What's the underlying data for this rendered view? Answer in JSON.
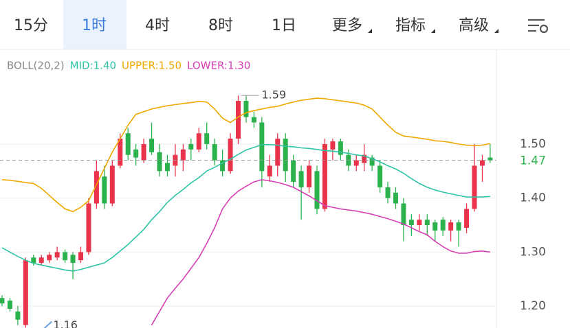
{
  "tabs": [
    "15分",
    "1时",
    "4时",
    "8时",
    "1日",
    "更多",
    "指标",
    "高级"
  ],
  "active_tab": 1,
  "chart_data": {
    "type": "candlestick",
    "indicator": "BOLL(20,2)",
    "up_color": "#e8334a",
    "down_color": "#2bb24c",
    "open": [
      1.215,
      1.21,
      1.19,
      1.165,
      1.29,
      1.28,
      1.285,
      1.29,
      1.3,
      1.295,
      1.285,
      1.3,
      1.39,
      1.44,
      1.39,
      1.46,
      1.52,
      1.49,
      1.47,
      1.51,
      1.485,
      1.465,
      1.46,
      1.47,
      1.5,
      1.49,
      1.52,
      1.5,
      1.47,
      1.45,
      1.51,
      1.58,
      1.55,
      1.54,
      1.44,
      1.46,
      1.51,
      1.47,
      1.45,
      1.42,
      1.45,
      1.38,
      1.49,
      1.505,
      1.48,
      1.46,
      1.465,
      1.475,
      1.46,
      1.42,
      1.41,
      1.39,
      1.36,
      1.35,
      1.36,
      1.355,
      1.36,
      1.34,
      1.355,
      1.345,
      1.38,
      1.46,
      1.475
    ],
    "high": [
      1.22,
      1.215,
      1.2,
      1.29,
      1.295,
      1.295,
      1.3,
      1.31,
      1.305,
      1.3,
      1.31,
      1.4,
      1.47,
      1.46,
      1.47,
      1.52,
      1.53,
      1.5,
      1.51,
      1.54,
      1.5,
      1.48,
      1.5,
      1.5,
      1.51,
      1.53,
      1.54,
      1.51,
      1.49,
      1.52,
      1.59,
      1.59,
      1.56,
      1.55,
      1.48,
      1.52,
      1.52,
      1.48,
      1.46,
      1.47,
      1.46,
      1.51,
      1.51,
      1.51,
      1.49,
      1.48,
      1.5,
      1.48,
      1.47,
      1.43,
      1.42,
      1.4,
      1.37,
      1.37,
      1.37,
      1.36,
      1.365,
      1.36,
      1.36,
      1.39,
      1.5,
      1.48,
      1.5
    ],
    "low": [
      1.2,
      1.19,
      1.165,
      1.16,
      1.275,
      1.275,
      1.28,
      1.285,
      1.28,
      1.25,
      1.28,
      1.295,
      1.38,
      1.38,
      1.385,
      1.455,
      1.47,
      1.46,
      1.465,
      1.48,
      1.44,
      1.44,
      1.44,
      1.45,
      1.47,
      1.485,
      1.49,
      1.46,
      1.44,
      1.445,
      1.5,
      1.54,
      1.53,
      1.42,
      1.43,
      1.44,
      1.43,
      1.42,
      1.36,
      1.41,
      1.37,
      1.375,
      1.47,
      1.47,
      1.45,
      1.45,
      1.45,
      1.45,
      1.41,
      1.39,
      1.38,
      1.32,
      1.33,
      1.34,
      1.33,
      1.32,
      1.33,
      1.32,
      1.31,
      1.335,
      1.375,
      1.43,
      1.465
    ],
    "close": [
      1.205,
      1.195,
      1.175,
      1.285,
      1.28,
      1.29,
      1.295,
      1.3,
      1.285,
      1.28,
      1.3,
      1.39,
      1.45,
      1.39,
      1.46,
      1.51,
      1.48,
      1.475,
      1.5,
      1.485,
      1.45,
      1.45,
      1.48,
      1.49,
      1.49,
      1.52,
      1.5,
      1.47,
      1.45,
      1.51,
      1.58,
      1.55,
      1.54,
      1.45,
      1.46,
      1.51,
      1.45,
      1.43,
      1.42,
      1.46,
      1.38,
      1.5,
      1.505,
      1.48,
      1.46,
      1.47,
      1.48,
      1.46,
      1.42,
      1.4,
      1.39,
      1.35,
      1.35,
      1.36,
      1.35,
      1.34,
      1.34,
      1.355,
      1.34,
      1.38,
      1.46,
      1.47,
      1.47
    ],
    "series": [
      {
        "name": "MID:1.40",
        "color": "#2ec4a5",
        "values": [
          1.308,
          1.3,
          1.292,
          1.285,
          1.279,
          1.276,
          1.273,
          1.27,
          1.267,
          1.265,
          1.268,
          1.272,
          1.276,
          1.28,
          1.29,
          1.302,
          1.314,
          1.328,
          1.342,
          1.36,
          1.375,
          1.392,
          1.405,
          1.416,
          1.428,
          1.438,
          1.45,
          1.457,
          1.465,
          1.472,
          1.481,
          1.489,
          1.494,
          1.499,
          1.499,
          1.498,
          1.496,
          1.495,
          1.493,
          1.492,
          1.49,
          1.488,
          1.487,
          1.485,
          1.483,
          1.48,
          1.478,
          1.473,
          1.467,
          1.46,
          1.454,
          1.446,
          1.436,
          1.427,
          1.42,
          1.415,
          1.411,
          1.408,
          1.405,
          1.402,
          1.402,
          1.402,
          1.403
        ]
      },
      {
        "name": "UPPER:1.50",
        "color": "#f0a800",
        "values": [
          1.434,
          1.433,
          1.431,
          1.429,
          1.427,
          1.418,
          1.405,
          1.392,
          1.38,
          1.375,
          1.383,
          1.395,
          1.425,
          1.455,
          1.485,
          1.51,
          1.535,
          1.555,
          1.56,
          1.565,
          1.568,
          1.571,
          1.573,
          1.575,
          1.577,
          1.579,
          1.578,
          1.565,
          1.548,
          1.54,
          1.55,
          1.558,
          1.562,
          1.565,
          1.568,
          1.57,
          1.574,
          1.578,
          1.581,
          1.583,
          1.585,
          1.584,
          1.582,
          1.58,
          1.578,
          1.576,
          1.572,
          1.565,
          1.55,
          1.535,
          1.522,
          1.515,
          1.513,
          1.511,
          1.509,
          1.506,
          1.505,
          1.503,
          1.5,
          1.498,
          1.497,
          1.498,
          1.501
        ]
      },
      {
        "name": "LOWER:1.30",
        "color": "#d63fb4",
        "values": [
          null,
          null,
          null,
          null,
          null,
          null,
          null,
          null,
          null,
          null,
          null,
          null,
          null,
          null,
          null,
          null,
          null,
          null,
          null,
          1.165,
          1.19,
          1.215,
          1.233,
          1.25,
          1.27,
          1.29,
          1.316,
          1.345,
          1.38,
          1.4,
          1.413,
          1.422,
          1.43,
          1.434,
          1.432,
          1.429,
          1.425,
          1.42,
          1.412,
          1.404,
          1.395,
          1.386,
          1.383,
          1.38,
          1.378,
          1.376,
          1.373,
          1.37,
          1.366,
          1.362,
          1.357,
          1.352,
          1.345,
          1.338,
          1.332,
          1.32,
          1.31,
          1.302,
          1.298,
          1.298,
          1.301,
          1.302,
          1.3
        ]
      }
    ],
    "ylim": [
      1.1595,
      1.627
    ],
    "yticks": [
      {
        "value": 1.5,
        "label": "1.50"
      },
      {
        "value": 1.4,
        "label": "1.40"
      },
      {
        "value": 1.3,
        "label": "1.30"
      },
      {
        "value": 1.2,
        "label": "1.20"
      }
    ],
    "grid": true,
    "last_price": 1.47,
    "max_label": 1.59,
    "min_label": 1.16
  }
}
